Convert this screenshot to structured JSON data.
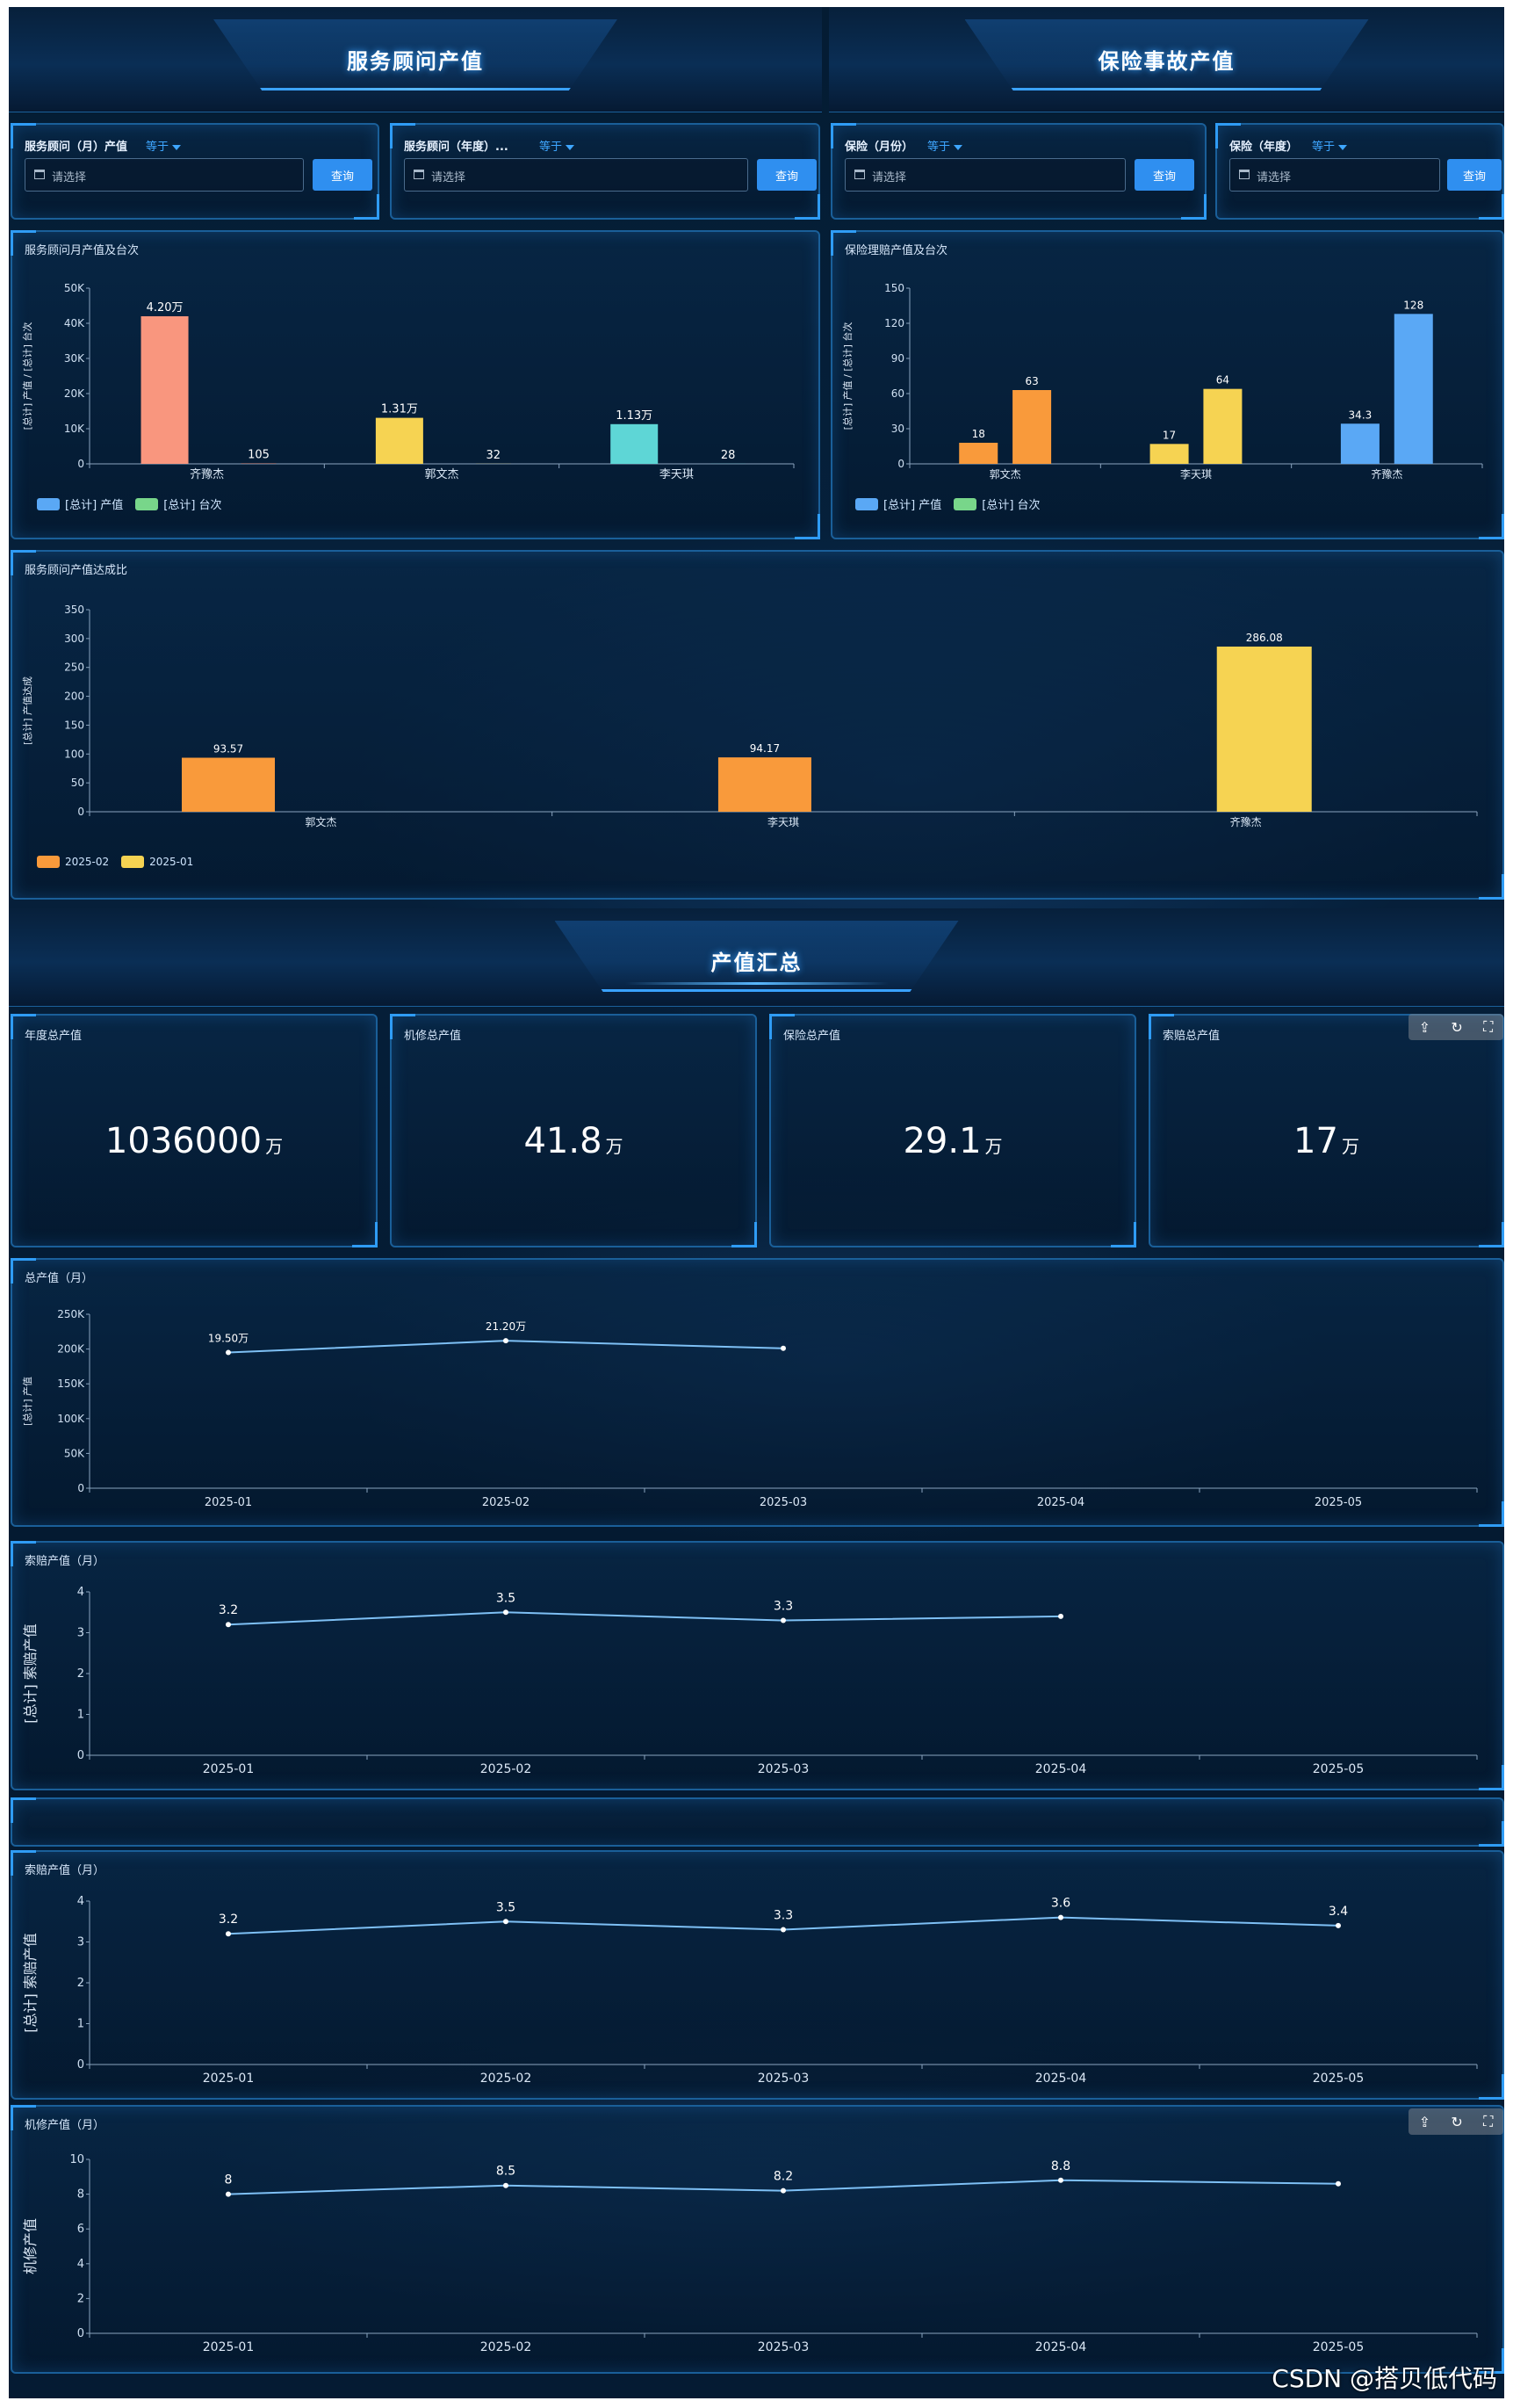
{
  "sections": {
    "left_banner": "服务顾问产值",
    "right_banner": "保险事故产值",
    "summary_banner": "产值汇总"
  },
  "filters": [
    {
      "label": "服务顾问（月）产值",
      "op": "等于",
      "placeholder": "请选择",
      "button": "查询"
    },
    {
      "label": "服务顾问（年度）...",
      "op": "等于",
      "placeholder": "请选择",
      "button": "查询"
    },
    {
      "label": "保险（月份）",
      "op": "等于",
      "placeholder": "请选择",
      "button": "查询"
    },
    {
      "label": "保险（年度）",
      "op": "等于",
      "placeholder": "请选择",
      "button": "查询"
    }
  ],
  "panels": {
    "advisor_monthly": {
      "title": "服务顾问月产值及台次"
    },
    "insurance_monthly": {
      "title": "保险理赔产值及台次"
    },
    "advisor_rate": {
      "title": "服务顾问产值达成比"
    },
    "total_monthly": {
      "title": "总产值（月）"
    },
    "claim_monthly_a": {
      "title": "索赔产值（月）"
    },
    "claim_monthly_b": {
      "title": "索赔产值（月）"
    },
    "repair_monthly": {
      "title": "机修产值（月）"
    }
  },
  "kpis": [
    {
      "title": "年度总产值",
      "value": "1036000",
      "unit": "万"
    },
    {
      "title": "机修总产值",
      "value": "41.8",
      "unit": "万"
    },
    {
      "title": "保险总产值",
      "value": "29.1",
      "unit": "万"
    },
    {
      "title": "索赔总产值",
      "value": "17",
      "unit": "万"
    }
  ],
  "toolbox_icons": [
    "export-icon",
    "refresh-icon",
    "fullscreen-icon"
  ],
  "toolbox_glyphs": [
    "⇪",
    "↻",
    "⛶"
  ],
  "watermark": "CSDN @搭贝低代码",
  "colors": {
    "bar_salmon": "#f9967e",
    "bar_yellow": "#f6d352",
    "bar_teal": "#5ed6d6",
    "bar_orange": "#f99a3b",
    "bar_blue": "#5aa8f5",
    "legend_blue": "#5aa8f5",
    "legend_green": "#78d68a",
    "line": "#7ec0f5",
    "accent": "#2f8ff0"
  },
  "chart_data": [
    {
      "id": "advisor_monthly",
      "type": "bar",
      "title": "服务顾问月产值及台次",
      "ylabel": "[总计] 产值 / [总计] 台次",
      "categories": [
        "齐豫杰",
        "郭文杰",
        "李天琪"
      ],
      "ylim": [
        0,
        50000
      ],
      "yticks": [
        "0",
        "10K",
        "20K",
        "30K",
        "40K",
        "50K"
      ],
      "series": [
        {
          "name": "[总计] 产值",
          "values": [
            42000,
            13100,
            11300
          ],
          "labels": [
            "4.20万",
            "1.31万",
            "1.13万"
          ]
        },
        {
          "name": "[总计] 台次",
          "values": [
            105,
            32,
            28
          ],
          "labels": [
            "105",
            "32",
            "28"
          ]
        }
      ],
      "bar_colors": [
        "#f9967e",
        "#f6d352",
        "#5ed6d6"
      ],
      "legend": [
        "[总计] 产值",
        "[总计] 台次"
      ]
    },
    {
      "id": "insurance_monthly",
      "type": "bar",
      "title": "保险理赔产值及台次",
      "ylabel": "[总计] 产值 / [总计] 台次",
      "categories": [
        "郭文杰",
        "李天琪",
        "齐豫杰"
      ],
      "ylim": [
        0,
        150
      ],
      "yticks": [
        "0",
        "30",
        "60",
        "90",
        "120",
        "150"
      ],
      "series": [
        {
          "name": "[总计] 产值",
          "values": [
            18,
            17,
            34.3
          ],
          "labels": [
            "18",
            "17",
            "34.3"
          ]
        },
        {
          "name": "[总计] 台次",
          "values": [
            63,
            64,
            128
          ],
          "labels": [
            "63",
            "64",
            "128"
          ]
        }
      ],
      "bar_colors": [
        "#f99a3b",
        "#f6d352",
        "#5aa8f5"
      ],
      "legend": [
        "[总计] 产值",
        "[总计] 台次"
      ]
    },
    {
      "id": "advisor_rate",
      "type": "bar",
      "title": "服务顾问产值达成比",
      "ylabel": "[总计] 产值达成",
      "categories": [
        "郭文杰",
        "李天琪",
        "齐豫杰"
      ],
      "ylim": [
        0,
        350
      ],
      "yticks": [
        "0",
        "50",
        "100",
        "150",
        "200",
        "250",
        "300",
        "350"
      ],
      "series": [
        {
          "name": "2025-02",
          "values": [
            93.57,
            94.17,
            null
          ],
          "labels": [
            "93.57",
            "94.17",
            ""
          ]
        },
        {
          "name": "2025-01",
          "values": [
            null,
            null,
            286.08
          ],
          "labels": [
            "",
            "",
            "286.08"
          ]
        }
      ],
      "bar_colors": [
        "#f99a3b",
        "#f6d352"
      ],
      "legend": [
        "2025-02",
        "2025-01"
      ]
    },
    {
      "id": "total_monthly",
      "type": "line",
      "title": "总产值（月）",
      "ylabel": "[总计] 产值",
      "x": [
        "2025-01",
        "2025-02",
        "2025-03",
        "2025-04",
        "2025-05"
      ],
      "ylim": [
        0,
        250000
      ],
      "yticks": [
        "0",
        "50K",
        "100K",
        "150K",
        "200K",
        "250K"
      ],
      "values": [
        195000,
        212000,
        201000,
        null,
        null
      ],
      "labels": [
        "19.50万",
        "21.20万",
        "",
        "",
        ""
      ]
    },
    {
      "id": "claim_monthly_a",
      "type": "line",
      "title": "索赔产值（月）",
      "ylabel": "[总计] 索赔产值",
      "x": [
        "2025-01",
        "2025-02",
        "2025-03",
        "2025-04",
        "2025-05"
      ],
      "ylim": [
        0,
        4
      ],
      "yticks": [
        "0",
        "1",
        "2",
        "3",
        "4"
      ],
      "values": [
        3.2,
        3.5,
        3.3,
        3.4,
        null
      ],
      "labels": [
        "3.2",
        "3.5",
        "3.3",
        "",
        ""
      ]
    },
    {
      "id": "claim_monthly_b",
      "type": "line",
      "title": "索赔产值（月）",
      "ylabel": "[总计] 索赔产值",
      "x": [
        "2025-01",
        "2025-02",
        "2025-03",
        "2025-04",
        "2025-05"
      ],
      "ylim": [
        0,
        4
      ],
      "yticks": [
        "0",
        "1",
        "2",
        "3",
        "4"
      ],
      "values": [
        3.2,
        3.5,
        3.3,
        3.6,
        3.4
      ],
      "labels": [
        "3.2",
        "3.5",
        "3.3",
        "3.6",
        "3.4"
      ]
    },
    {
      "id": "repair_monthly",
      "type": "line",
      "title": "机修产值（月）",
      "ylabel": "机修产值",
      "x": [
        "2025-01",
        "2025-02",
        "2025-03",
        "2025-04",
        "2025-05"
      ],
      "ylim": [
        0,
        10
      ],
      "yticks": [
        "0",
        "2",
        "4",
        "6",
        "8",
        "10"
      ],
      "values": [
        8,
        8.5,
        8.2,
        8.8,
        8.6
      ],
      "labels": [
        "8",
        "8.5",
        "8.2",
        "8.8",
        ""
      ]
    }
  ]
}
